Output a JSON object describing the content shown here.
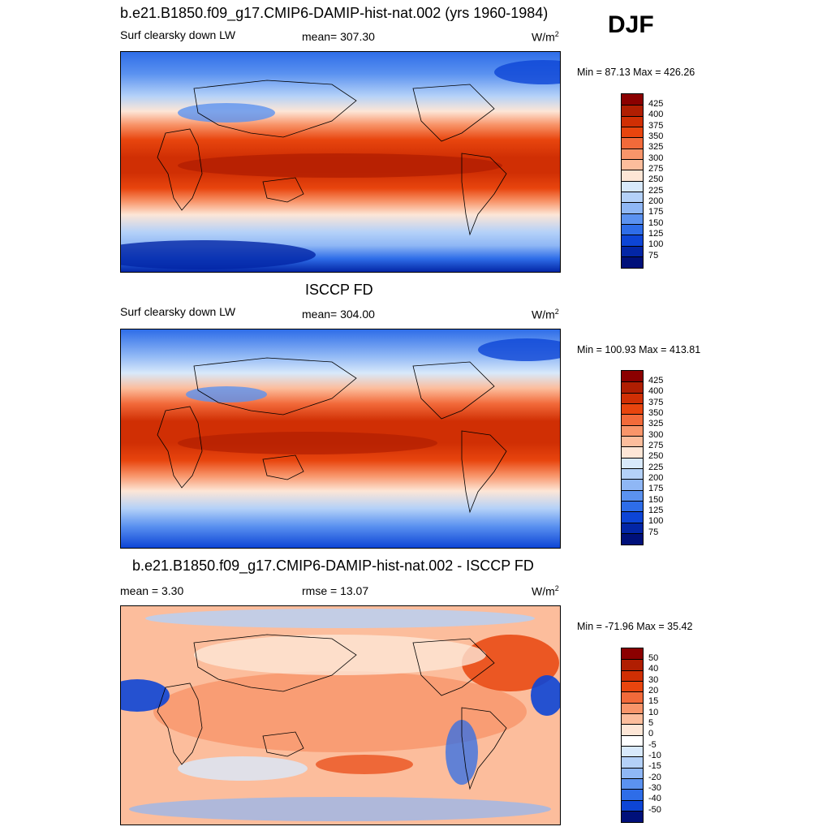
{
  "season": "DJF",
  "panels": [
    {
      "title": "b.e21.B1850.f09_g17.CMIP6-DAMIP-hist-nat.002 (yrs 1960-1984)",
      "left_label": "Surf clearsky down LW",
      "center_label": "mean= 307.30",
      "units": "W/m",
      "units_sup": "2",
      "minmax": "Min =  87.13 Max = 426.26",
      "kind": "abs"
    },
    {
      "title": "ISCCP FD",
      "left_label": "Surf clearsky down LW",
      "center_label": "mean= 304.00",
      "units": "W/m",
      "units_sup": "2",
      "minmax": "Min = 100.93 Max = 413.81",
      "kind": "abs"
    },
    {
      "title": "b.e21.B1850.f09_g17.CMIP6-DAMIP-hist-nat.002 - ISCCP FD",
      "left_label": "mean =   3.30",
      "center_label": "rmse =  13.07",
      "units": "W/m",
      "units_sup": "2",
      "minmax": "Min = -71.96 Max =  35.42",
      "kind": "diff"
    }
  ],
  "colorbars": {
    "abs": {
      "labels": [
        "425",
        "400",
        "375",
        "350",
        "325",
        "300",
        "275",
        "250",
        "225",
        "200",
        "175",
        "150",
        "125",
        "100",
        "75"
      ],
      "colors": [
        "#8b0000",
        "#b01e02",
        "#d02f04",
        "#e8450e",
        "#f26a3a",
        "#f8956a",
        "#fcbd9c",
        "#fde6d6",
        "#d8e9fb",
        "#b4d1f8",
        "#8fb7f5",
        "#5b92f0",
        "#2e6de8",
        "#0d45d6",
        "#0326a6",
        "#00107a"
      ]
    },
    "diff": {
      "labels": [
        "50",
        "40",
        "30",
        "20",
        "15",
        "10",
        "5",
        "0",
        "-5",
        "-10",
        "-15",
        "-20",
        "-30",
        "-40",
        "-50"
      ],
      "colors": [
        "#8b0000",
        "#b01e02",
        "#d02f04",
        "#e8450e",
        "#f26a3a",
        "#f8956a",
        "#fcbd9c",
        "#fde6d6",
        "#ffffff",
        "#d8e9fb",
        "#b4d1f8",
        "#8fb7f5",
        "#5b92f0",
        "#2e6de8",
        "#0d45d6",
        "#00107a"
      ]
    }
  }
}
